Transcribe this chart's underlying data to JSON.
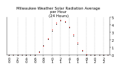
{
  "title": "Milwaukee Weather Solar Radiation Average\nper Hour\n(24 Hours)",
  "hours": [
    0,
    1,
    2,
    3,
    4,
    5,
    6,
    7,
    8,
    9,
    10,
    11,
    12,
    13,
    14,
    15,
    16,
    17,
    18,
    19,
    20,
    21,
    22,
    23
  ],
  "red_values": [
    0,
    0,
    0,
    0,
    0,
    0,
    5,
    40,
    120,
    220,
    340,
    430,
    470,
    450,
    380,
    280,
    170,
    70,
    10,
    0,
    0,
    0,
    0,
    0
  ],
  "black_values": [
    0,
    0,
    0,
    0,
    0,
    0,
    8,
    50,
    130,
    210,
    320,
    410,
    460,
    440,
    370,
    260,
    150,
    60,
    8,
    0,
    0,
    0,
    0,
    0
  ],
  "ylim": [
    0,
    500
  ],
  "ytick_positions": [
    0,
    100,
    200,
    300,
    400,
    500
  ],
  "ytick_labels": [
    "0",
    "1",
    "2",
    "3",
    "4",
    "5"
  ],
  "xtick_positions": [
    0,
    2,
    4,
    6,
    8,
    10,
    12,
    14,
    16,
    18,
    20,
    22
  ],
  "grid_x": [
    2,
    4,
    6,
    8,
    10,
    12,
    14,
    16,
    18,
    20,
    22
  ],
  "red_color": "#ff0000",
  "black_color": "#000000",
  "bg_color": "#ffffff",
  "title_fontsize": 4,
  "tick_fontsize": 3.5,
  "marker_size": 1.8,
  "grid_color": "#aaaaaa",
  "grid_lw": 0.3
}
